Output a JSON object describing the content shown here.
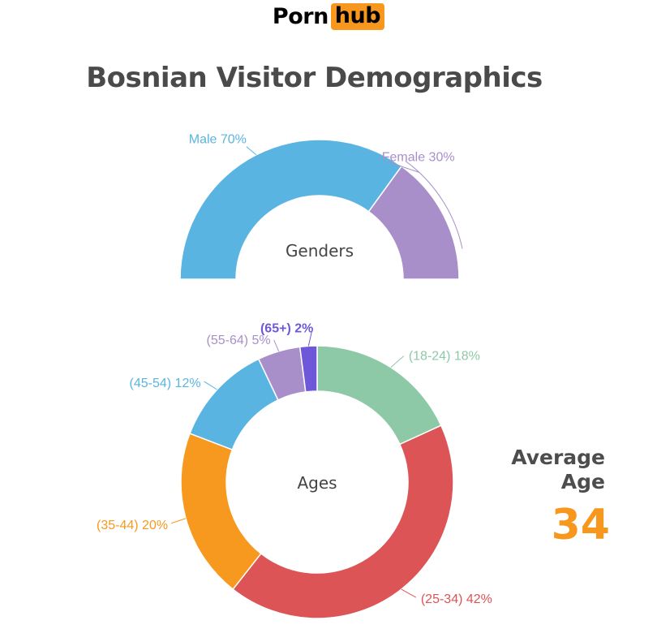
{
  "brand": {
    "part1": "Porn",
    "part2": "hub",
    "accent": "#f7971d"
  },
  "title": "Bosnian Visitor Demographics",
  "average_age": {
    "line1": "Average",
    "line2": "Age",
    "value": "34"
  },
  "chart_data": [
    {
      "type": "pie",
      "variant": "half-donut",
      "center_label": "Genders",
      "categories": [
        "Male",
        "Female"
      ],
      "values": [
        70,
        30
      ],
      "labels": [
        "Male 70%",
        "Female 30%"
      ],
      "colors": [
        "#5ab4e2",
        "#a98fca"
      ]
    },
    {
      "type": "pie",
      "variant": "donut",
      "center_label": "Ages",
      "categories": [
        "(18-24)",
        "(25-34)",
        "(35-44)",
        "(45-54)",
        "(55-64)",
        "(65+)"
      ],
      "values": [
        18,
        42,
        20,
        12,
        5,
        2
      ],
      "labels": [
        "(18-24) 18%",
        "(25-34) 42%",
        "(35-44) 20%",
        "(45-54) 12%",
        "(55-64) 5%",
        "(65+) 2%"
      ],
      "colors": [
        "#8ec9a7",
        "#dc5456",
        "#f7991e",
        "#5ab4e2",
        "#a98fca",
        "#6f57d9"
      ]
    }
  ]
}
